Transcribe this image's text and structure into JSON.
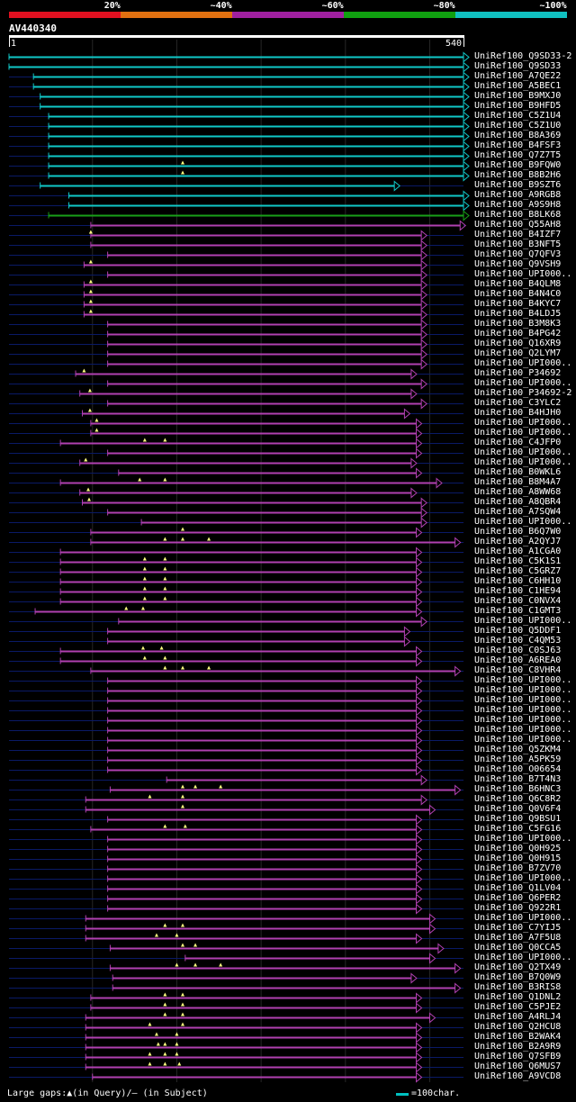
{
  "legend": [
    {
      "label": "20%",
      "color": "#e01020"
    },
    {
      "label": "~40%",
      "color": "#e07010"
    },
    {
      "label": "~60%",
      "color": "#a020a0"
    },
    {
      "label": "~80%",
      "color": "#10a010"
    },
    {
      "label": "~100%",
      "color": "#10c0c0"
    }
  ],
  "query": {
    "title": "AV440340",
    "start": "1",
    "end": "540",
    "length": 540
  },
  "footer": {
    "gaps_text": "Large gaps:▲(in Query)/– (in Subject)",
    "scale_text": "=100char."
  },
  "colors": {
    "cyan": "#10c8c8",
    "purple": "#b040b0",
    "green": "#18a018",
    "marker": "#ffff80",
    "dim": "#0a1a66"
  },
  "hits": [
    {
      "label": "UniRef100_Q9SD33-2",
      "start": 1,
      "end": 540,
      "color": "cyan",
      "markers": []
    },
    {
      "label": "UniRef100_Q9SD33",
      "start": 1,
      "end": 540,
      "color": "cyan",
      "markers": []
    },
    {
      "label": "UniRef100_A7QE22",
      "start": 30,
      "end": 540,
      "color": "cyan",
      "markers": []
    },
    {
      "label": "UniRef100_A5BEC1",
      "start": 30,
      "end": 540,
      "color": "cyan",
      "markers": []
    },
    {
      "label": "UniRef100_B9MXJ0",
      "start": 38,
      "end": 540,
      "color": "cyan",
      "markers": []
    },
    {
      "label": "UniRef100_B9HFD5",
      "start": 38,
      "end": 540,
      "color": "cyan",
      "markers": []
    },
    {
      "label": "UniRef100_C5Z1U4",
      "start": 48,
      "end": 540,
      "color": "cyan",
      "markers": []
    },
    {
      "label": "UniRef100_C5Z1U0",
      "start": 48,
      "end": 540,
      "color": "cyan",
      "markers": []
    },
    {
      "label": "UniRef100_B8A369",
      "start": 48,
      "end": 540,
      "color": "cyan",
      "markers": []
    },
    {
      "label": "UniRef100_B4FSF3",
      "start": 48,
      "end": 540,
      "color": "cyan",
      "markers": []
    },
    {
      "label": "UniRef100_Q7Z7T5",
      "start": 48,
      "end": 540,
      "color": "cyan",
      "markers": []
    },
    {
      "label": "UniRef100_B9FQW0",
      "start": 48,
      "end": 540,
      "color": "cyan",
      "markers": [
        207
      ]
    },
    {
      "label": "UniRef100_B8B2H6",
      "start": 48,
      "end": 540,
      "color": "cyan",
      "markers": [
        207
      ]
    },
    {
      "label": "UniRef100_B9SZT6",
      "start": 38,
      "end": 458,
      "color": "cyan",
      "markers": []
    },
    {
      "label": "UniRef100_A9RGB8",
      "start": 72,
      "end": 540,
      "color": "cyan",
      "markers": []
    },
    {
      "label": "UniRef100_A9S9H8",
      "start": 72,
      "end": 540,
      "color": "cyan",
      "markers": []
    },
    {
      "label": "UniRef100_B8LK68",
      "start": 48,
      "end": 540,
      "color": "green",
      "markers": []
    },
    {
      "label": "UniRef100_Q55AH8",
      "start": 98,
      "end": 536,
      "color": "purple",
      "markers": []
    },
    {
      "label": "UniRef100_B4IZF7",
      "start": 98,
      "end": 490,
      "color": "purple",
      "markers": [
        98
      ]
    },
    {
      "label": "UniRef100_B3NFT5",
      "start": 98,
      "end": 490,
      "color": "purple",
      "markers": []
    },
    {
      "label": "UniRef100_Q7QFV3",
      "start": 118,
      "end": 490,
      "color": "purple",
      "markers": []
    },
    {
      "label": "UniRef100_Q9VSH9",
      "start": 90,
      "end": 490,
      "color": "purple",
      "markers": [
        98
      ]
    },
    {
      "label": "UniRef100_UPI000..",
      "start": 118,
      "end": 490,
      "color": "purple",
      "markers": []
    },
    {
      "label": "UniRef100_B4QLM8",
      "start": 90,
      "end": 490,
      "color": "purple",
      "markers": [
        98
      ]
    },
    {
      "label": "UniRef100_B4N4C0",
      "start": 90,
      "end": 490,
      "color": "purple",
      "markers": [
        98
      ]
    },
    {
      "label": "UniRef100_B4KYC7",
      "start": 90,
      "end": 490,
      "color": "purple",
      "markers": [
        98
      ]
    },
    {
      "label": "UniRef100_B4LDJ5",
      "start": 90,
      "end": 490,
      "color": "purple",
      "markers": [
        98
      ]
    },
    {
      "label": "UniRef100_B3M8K3",
      "start": 118,
      "end": 490,
      "color": "purple",
      "markers": []
    },
    {
      "label": "UniRef100_B4PG42",
      "start": 118,
      "end": 490,
      "color": "purple",
      "markers": []
    },
    {
      "label": "UniRef100_Q16XR9",
      "start": 118,
      "end": 490,
      "color": "purple",
      "markers": []
    },
    {
      "label": "UniRef100_Q2LYM7",
      "start": 118,
      "end": 490,
      "color": "purple",
      "markers": []
    },
    {
      "label": "UniRef100_UPI000..",
      "start": 118,
      "end": 490,
      "color": "purple",
      "markers": []
    },
    {
      "label": "UniRef100_P34692",
      "start": 80,
      "end": 478,
      "color": "purple",
      "markers": [
        90
      ]
    },
    {
      "label": "UniRef100_UPI000..",
      "start": 118,
      "end": 490,
      "color": "purple",
      "markers": []
    },
    {
      "label": "UniRef100_P34692-2",
      "start": 85,
      "end": 478,
      "color": "purple",
      "markers": [
        97
      ]
    },
    {
      "label": "UniRef100_C3YLC2",
      "start": 118,
      "end": 490,
      "color": "purple",
      "markers": []
    },
    {
      "label": "UniRef100_B4HJH0",
      "start": 88,
      "end": 470,
      "color": "purple",
      "markers": [
        97
      ]
    },
    {
      "label": "UniRef100_UPI000..",
      "start": 98,
      "end": 484,
      "color": "purple",
      "markers": [
        105
      ]
    },
    {
      "label": "UniRef100_UPI000..",
      "start": 98,
      "end": 484,
      "color": "purple",
      "markers": [
        105
      ]
    },
    {
      "label": "UniRef100_C4JFP0",
      "start": 62,
      "end": 484,
      "color": "purple",
      "markers": [
        162,
        186
      ]
    },
    {
      "label": "UniRef100_UPI000..",
      "start": 118,
      "end": 484,
      "color": "purple",
      "markers": []
    },
    {
      "label": "UniRef100_UPI000..",
      "start": 85,
      "end": 478,
      "color": "purple",
      "markers": [
        92
      ]
    },
    {
      "label": "UniRef100_B0WKL6",
      "start": 131,
      "end": 484,
      "color": "purple",
      "markers": []
    },
    {
      "label": "UniRef100_B8M4A7",
      "start": 62,
      "end": 508,
      "color": "purple",
      "markers": [
        156,
        186
      ]
    },
    {
      "label": "UniRef100_A8WW68",
      "start": 85,
      "end": 478,
      "color": "purple",
      "markers": [
        95
      ]
    },
    {
      "label": "UniRef100_A8QBR4",
      "start": 88,
      "end": 490,
      "color": "purple",
      "markers": [
        96
      ]
    },
    {
      "label": "UniRef100_A7SQW4",
      "start": 118,
      "end": 490,
      "color": "purple",
      "markers": []
    },
    {
      "label": "UniRef100_UPI000..",
      "start": 158,
      "end": 490,
      "color": "purple",
      "markers": []
    },
    {
      "label": "UniRef100_B6Q7W0",
      "start": 98,
      "end": 484,
      "color": "purple",
      "markers": [
        207
      ]
    },
    {
      "label": "UniRef100_A2QYJ7",
      "start": 98,
      "end": 530,
      "color": "purple",
      "markers": [
        186,
        207,
        238
      ]
    },
    {
      "label": "UniRef100_A1CGA0",
      "start": 62,
      "end": 484,
      "color": "purple",
      "markers": []
    },
    {
      "label": "UniRef100_C5K1S1",
      "start": 62,
      "end": 484,
      "color": "purple",
      "markers": [
        162,
        186
      ]
    },
    {
      "label": "UniRef100_C5GRZ7",
      "start": 62,
      "end": 484,
      "color": "purple",
      "markers": [
        162,
        186
      ]
    },
    {
      "label": "UniRef100_C6HH10",
      "start": 62,
      "end": 484,
      "color": "purple",
      "markers": [
        162,
        186
      ]
    },
    {
      "label": "UniRef100_C1HE94",
      "start": 62,
      "end": 484,
      "color": "purple",
      "markers": [
        162,
        186
      ]
    },
    {
      "label": "UniRef100_C0NVX4",
      "start": 62,
      "end": 484,
      "color": "purple",
      "markers": [
        162,
        186
      ]
    },
    {
      "label": "UniRef100_C1GMT3",
      "start": 32,
      "end": 484,
      "color": "purple",
      "markers": [
        140,
        160
      ]
    },
    {
      "label": "UniRef100_UPI000..",
      "start": 131,
      "end": 490,
      "color": "purple",
      "markers": []
    },
    {
      "label": "UniRef100_Q5DDF1",
      "start": 118,
      "end": 470,
      "color": "purple",
      "markers": []
    },
    {
      "label": "UniRef100_C4QM53",
      "start": 118,
      "end": 470,
      "color": "purple",
      "markers": []
    },
    {
      "label": "UniRef100_C0SJ63",
      "start": 62,
      "end": 484,
      "color": "purple",
      "markers": [
        160,
        182
      ]
    },
    {
      "label": "UniRef100_A6REA0",
      "start": 62,
      "end": 484,
      "color": "purple",
      "markers": [
        162,
        186
      ]
    },
    {
      "label": "UniRef100_C8VHR4",
      "start": 98,
      "end": 530,
      "color": "purple",
      "markers": [
        186,
        207,
        238
      ]
    },
    {
      "label": "UniRef100_UPI000..",
      "start": 118,
      "end": 484,
      "color": "purple",
      "markers": []
    },
    {
      "label": "UniRef100_UPI000..",
      "start": 118,
      "end": 484,
      "color": "purple",
      "markers": []
    },
    {
      "label": "UniRef100_UPI000..",
      "start": 118,
      "end": 484,
      "color": "purple",
      "markers": []
    },
    {
      "label": "UniRef100_UPI000..",
      "start": 118,
      "end": 484,
      "color": "purple",
      "markers": []
    },
    {
      "label": "UniRef100_UPI000..",
      "start": 118,
      "end": 484,
      "color": "purple",
      "markers": []
    },
    {
      "label": "UniRef100_UPI000..",
      "start": 118,
      "end": 484,
      "color": "purple",
      "markers": []
    },
    {
      "label": "UniRef100_UPI000..",
      "start": 118,
      "end": 484,
      "color": "purple",
      "markers": []
    },
    {
      "label": "UniRef100_Q5ZKM4",
      "start": 118,
      "end": 484,
      "color": "purple",
      "markers": []
    },
    {
      "label": "UniRef100_A5PK59",
      "start": 118,
      "end": 484,
      "color": "purple",
      "markers": []
    },
    {
      "label": "UniRef100_O06654",
      "start": 118,
      "end": 484,
      "color": "purple",
      "markers": []
    },
    {
      "label": "UniRef100_B7T4N3",
      "start": 188,
      "end": 490,
      "color": "purple",
      "markers": []
    },
    {
      "label": "UniRef100_B6HNC3",
      "start": 121,
      "end": 530,
      "color": "purple",
      "markers": [
        207,
        222,
        252
      ]
    },
    {
      "label": "UniRef100_Q6C8R2",
      "start": 92,
      "end": 490,
      "color": "purple",
      "markers": [
        168,
        207
      ]
    },
    {
      "label": "UniRef100_Q0V6F4",
      "start": 92,
      "end": 500,
      "color": "purple",
      "markers": [
        207
      ]
    },
    {
      "label": "UniRef100_Q9BSU1",
      "start": 118,
      "end": 484,
      "color": "purple",
      "markers": []
    },
    {
      "label": "UniRef100_C5FG16",
      "start": 98,
      "end": 484,
      "color": "purple",
      "markers": [
        186,
        210
      ]
    },
    {
      "label": "UniRef100_UPI000..",
      "start": 118,
      "end": 484,
      "color": "purple",
      "markers": []
    },
    {
      "label": "UniRef100_Q0H925",
      "start": 118,
      "end": 484,
      "color": "purple",
      "markers": []
    },
    {
      "label": "UniRef100_Q0H915",
      "start": 118,
      "end": 484,
      "color": "purple",
      "markers": []
    },
    {
      "label": "UniRef100_B7ZV70",
      "start": 118,
      "end": 484,
      "color": "purple",
      "markers": []
    },
    {
      "label": "UniRef100_UPI000..",
      "start": 118,
      "end": 484,
      "color": "purple",
      "markers": []
    },
    {
      "label": "UniRef100_Q1LV04",
      "start": 118,
      "end": 484,
      "color": "purple",
      "markers": []
    },
    {
      "label": "UniRef100_Q6PER2",
      "start": 118,
      "end": 484,
      "color": "purple",
      "markers": []
    },
    {
      "label": "UniRef100_Q922R1",
      "start": 118,
      "end": 484,
      "color": "purple",
      "markers": []
    },
    {
      "label": "UniRef100_UPI000..",
      "start": 92,
      "end": 500,
      "color": "purple",
      "markers": []
    },
    {
      "label": "UniRef100_C7YIJ5",
      "start": 92,
      "end": 500,
      "color": "purple",
      "markers": [
        186,
        207
      ]
    },
    {
      "label": "UniRef100_A7F5U8",
      "start": 92,
      "end": 484,
      "color": "purple",
      "markers": [
        176,
        200
      ]
    },
    {
      "label": "UniRef100_Q0CCA5",
      "start": 121,
      "end": 510,
      "color": "purple",
      "markers": [
        207,
        222
      ]
    },
    {
      "label": "UniRef100_UPI000..",
      "start": 210,
      "end": 500,
      "color": "purple",
      "markers": []
    },
    {
      "label": "UniRef100_Q2TX49",
      "start": 121,
      "end": 530,
      "color": "purple",
      "markers": [
        200,
        222,
        252
      ]
    },
    {
      "label": "UniRef100_B7Q0W9",
      "start": 124,
      "end": 478,
      "color": "purple",
      "markers": []
    },
    {
      "label": "UniRef100_B3RIS8",
      "start": 124,
      "end": 530,
      "color": "purple",
      "markers": []
    },
    {
      "label": "UniRef100_Q1DNL2",
      "start": 98,
      "end": 484,
      "color": "purple",
      "markers": [
        186,
        207
      ]
    },
    {
      "label": "UniRef100_C5PJE2",
      "start": 98,
      "end": 484,
      "color": "purple",
      "markers": [
        186,
        207
      ]
    },
    {
      "label": "UniRef100_A4RLJ4",
      "start": 92,
      "end": 500,
      "color": "purple",
      "markers": [
        186,
        207
      ]
    },
    {
      "label": "UniRef100_Q2HCU8",
      "start": 92,
      "end": 484,
      "color": "purple",
      "markers": [
        168,
        207
      ]
    },
    {
      "label": "UniRef100_B2WAK4",
      "start": 92,
      "end": 484,
      "color": "purple",
      "markers": [
        176,
        200
      ]
    },
    {
      "label": "UniRef100_B2A9R9",
      "start": 92,
      "end": 484,
      "color": "purple",
      "markers": [
        178,
        186,
        200
      ]
    },
    {
      "label": "UniRef100_Q7SFB9",
      "start": 92,
      "end": 484,
      "color": "purple",
      "markers": [
        168,
        186,
        200
      ]
    },
    {
      "label": "UniRef100_Q6MUS7",
      "start": 92,
      "end": 484,
      "color": "purple",
      "markers": [
        168,
        186,
        203
      ]
    },
    {
      "label": "UniRef100_A9VCD8",
      "start": 100,
      "end": 484,
      "color": "purple",
      "markers": []
    }
  ]
}
